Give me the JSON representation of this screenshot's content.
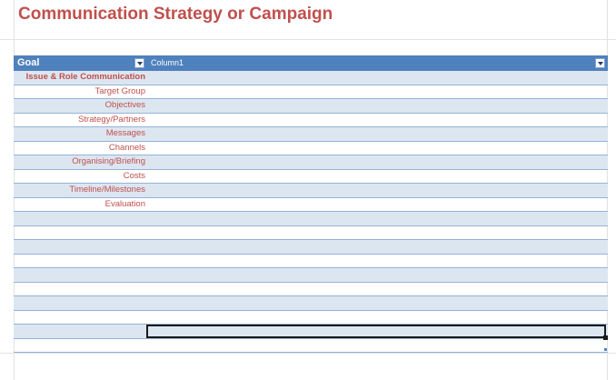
{
  "sheet": {
    "title": "Communication Strategy or Campaign"
  },
  "table": {
    "headers": {
      "goal": "Goal",
      "column1": "Column1"
    },
    "header_color": "#4f81bd",
    "band_color": "#dce6f1",
    "label_color": "#c0504d",
    "rows": [
      {
        "goal": "Issue & Role Communication",
        "column1": ""
      },
      {
        "goal": "Target Group",
        "column1": ""
      },
      {
        "goal": "Objectives",
        "column1": ""
      },
      {
        "goal": "Strategy/Partners",
        "column1": ""
      },
      {
        "goal": "Messages",
        "column1": ""
      },
      {
        "goal": "Channels",
        "column1": ""
      },
      {
        "goal": "Organising/Briefing",
        "column1": ""
      },
      {
        "goal": "Costs",
        "column1": ""
      },
      {
        "goal": "Timeline/Milestones",
        "column1": ""
      },
      {
        "goal": "Evaluation",
        "column1": ""
      },
      {
        "goal": "",
        "column1": ""
      },
      {
        "goal": "",
        "column1": ""
      },
      {
        "goal": "",
        "column1": ""
      },
      {
        "goal": "",
        "column1": ""
      },
      {
        "goal": "",
        "column1": ""
      },
      {
        "goal": "",
        "column1": ""
      },
      {
        "goal": "",
        "column1": ""
      },
      {
        "goal": "",
        "column1": ""
      },
      {
        "goal": "",
        "column1": ""
      },
      {
        "goal": "",
        "column1": ""
      }
    ]
  }
}
